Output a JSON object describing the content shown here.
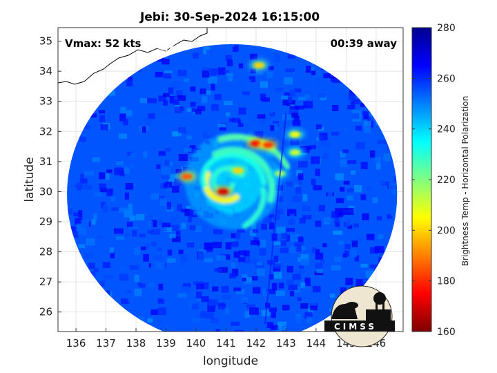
{
  "chart_data": {
    "type": "heatmap",
    "title": "Jebi: 30-Sep-2024 16:15:00",
    "xlabel": "longitude",
    "ylabel": "latitude",
    "xlim": [
      135.4,
      146.9
    ],
    "ylim": [
      25.35,
      35.45
    ],
    "xticks": [
      136,
      137,
      138,
      139,
      140,
      141,
      142,
      143,
      144,
      145,
      146
    ],
    "yticks": [
      26,
      27,
      28,
      29,
      30,
      31,
      32,
      33,
      34,
      35
    ],
    "grid": true,
    "annotations": {
      "vmax": "Vmax: 52 kts",
      "time_offset": "00:39 away"
    },
    "colorbar": {
      "label": "Brightness Temp - Horizontal Polarization",
      "min": 160,
      "max": 280,
      "ticks": [
        160,
        180,
        200,
        220,
        240,
        260,
        280
      ],
      "colors": [
        "#7f0000",
        "#ff0000",
        "#ff8000",
        "#ffff00",
        "#80ff80",
        "#00ffff",
        "#0080ff",
        "#0000ff",
        "#00008f"
      ]
    },
    "swath": {
      "center_lon": 141.2,
      "center_lat": 29.9,
      "radius_deg_lon": 5.5,
      "radius_deg_lat": 5.0
    },
    "storm_center": {
      "lon": 141.0,
      "lat": 30.3
    },
    "features": [
      {
        "lon": 140.9,
        "lat": 30.0,
        "value": 170
      },
      {
        "lon": 139.7,
        "lat": 30.5,
        "value": 185
      },
      {
        "lon": 141.4,
        "lat": 30.7,
        "value": 200
      },
      {
        "lon": 142.0,
        "lat": 31.6,
        "value": 175
      },
      {
        "lon": 142.4,
        "lat": 31.55,
        "value": 180
      },
      {
        "lon": 143.3,
        "lat": 31.9,
        "value": 205
      },
      {
        "lon": 143.3,
        "lat": 31.3,
        "value": 210
      },
      {
        "lon": 142.1,
        "lat": 34.2,
        "value": 200
      },
      {
        "lon": 142.8,
        "lat": 30.6,
        "value": 215
      }
    ],
    "logo_text": "CIMSS"
  },
  "colors": {
    "background": "#ffffff",
    "ocean_base": "#1f4fe0",
    "coastline_land": "#ffffff",
    "coastline_stroke": "#000000"
  }
}
